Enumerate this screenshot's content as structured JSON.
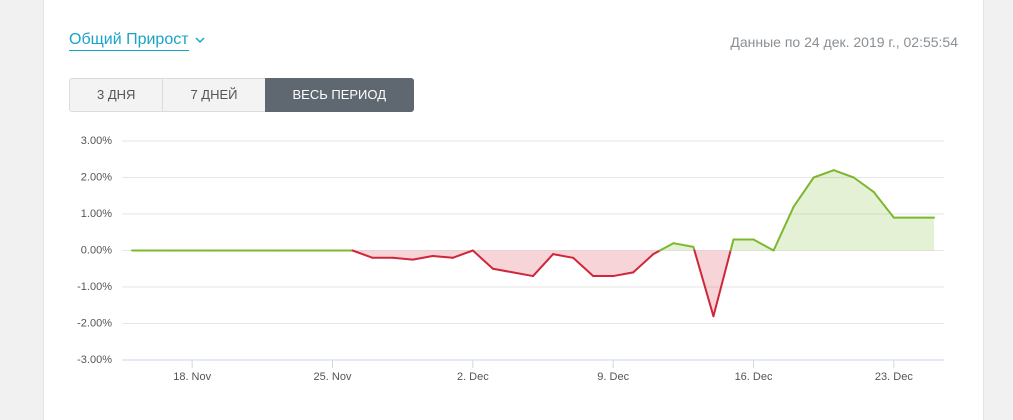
{
  "header": {
    "title": "Общий Прирост",
    "timestamp": "Данные по 24 дек. 2019 г., 02:55:54"
  },
  "tabs": {
    "items": [
      "3 ДНЯ",
      "7 ДНЕЙ",
      "ВЕСЬ ПЕРИОД"
    ],
    "active": 2
  },
  "chart_data": {
    "type": "line",
    "x": [
      "15. Nov",
      "16. Nov",
      "17. Nov",
      "18. Nov",
      "19. Nov",
      "20. Nov",
      "21. Nov",
      "22. Nov",
      "23. Nov",
      "24. Nov",
      "25. Nov",
      "26. Nov",
      "27. Nov",
      "28. Nov",
      "29. Nov",
      "30. Nov",
      "1. Dec",
      "2. Dec",
      "3. Dec",
      "4. Dec",
      "5. Dec",
      "6. Dec",
      "7. Dec",
      "8. Dec",
      "9. Dec",
      "10. Dec",
      "11. Dec",
      "12. Dec",
      "13. Dec",
      "14. Dec",
      "15. Dec",
      "16. Dec",
      "17. Dec",
      "18. Dec",
      "19. Dec",
      "20. Dec",
      "21. Dec",
      "22. Dec",
      "23. Dec",
      "24. Dec",
      "25. Dec"
    ],
    "series": [
      {
        "name": "Общий Прирост",
        "color": "#7cb82f",
        "negative_color": "#d0263a",
        "values": [
          0,
          0,
          0,
          0,
          0,
          0,
          0,
          0,
          0,
          0,
          0,
          0,
          -0.2,
          -0.2,
          -0.25,
          -0.15,
          -0.2,
          0.0,
          -0.5,
          -0.6,
          -0.7,
          -0.1,
          -0.2,
          -0.7,
          -0.7,
          -0.6,
          -0.1,
          0.2,
          0.1,
          -1.8,
          0.3,
          0.3,
          0.0,
          1.2,
          2.0,
          2.2,
          2.0,
          1.6,
          0.9,
          0.9,
          0.9
        ]
      }
    ],
    "xticks": [
      "18. Nov",
      "25. Nov",
      "2. Dec",
      "9. Dec",
      "16. Dec",
      "23. Dec"
    ],
    "ylim": [
      -3,
      3
    ],
    "yticks": [
      {
        "value": 3,
        "label": "3.00%"
      },
      {
        "value": 2,
        "label": "2.00%"
      },
      {
        "value": 1,
        "label": "1.00%"
      },
      {
        "value": 0,
        "label": "0.00%"
      },
      {
        "value": -1,
        "label": "-1.00%"
      },
      {
        "value": -2,
        "label": "-2.00%"
      },
      {
        "value": -3,
        "label": "-3.00%"
      }
    ],
    "grid": true
  }
}
